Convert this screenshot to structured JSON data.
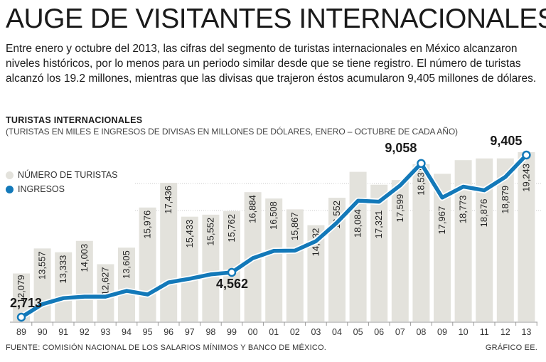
{
  "headline": "AUGE DE VISITANTES INTERNACIONALES",
  "intro": "Entre enero y octubre del 2013, las cifras del segmento de turistas internacionales en México alcanzaron niveles históricos, por lo menos para un periodo similar desde que se tiene registro. El número de turistas alcanzó los 19.2 millones, mientras que las divisas que trajeron éstos acumularon 9,405 millones de dólares.",
  "footer": {
    "source": "FUENTE: COMISIÓN NACIONAL DE LOS SALARIOS MÍNIMOS Y BANCO DE MÉXICO.",
    "credit": "GRÁFICO EE."
  },
  "colors": {
    "bars": "#e3e2dc",
    "line": "#1379b9",
    "text": "#1a1a1a"
  },
  "chart_data": {
    "type": "bar",
    "title": "TURISTAS INTERNACIONALES",
    "subtitle": "(TURISTAS EN MILES E INGRESOS DE DIVISAS EN MILLONES DE DÓLARES, ENERO – OCTUBRE DE CADA AÑO)",
    "categories": [
      "89",
      "90",
      "91",
      "92",
      "93",
      "94",
      "95",
      "96",
      "97",
      "98",
      "99",
      "00",
      "01",
      "02",
      "03",
      "04",
      "05",
      "06",
      "07",
      "08",
      "09",
      "10",
      "11",
      "12",
      "13"
    ],
    "series": [
      {
        "name": "NÚMERO DE TURISTAS",
        "type": "bar",
        "values": [
          12079,
          13557,
          13333,
          14003,
          12627,
          13605,
          15976,
          17436,
          15433,
          15552,
          15762,
          16884,
          16508,
          15867,
          14932,
          16552,
          18084,
          17321,
          17599,
          18531,
          17967,
          18773,
          18876,
          18879,
          19243
        ],
        "labels": [
          "12,079",
          "13,557",
          "13,333",
          "14,003",
          "12,627",
          "13,605",
          "15,976",
          "17,436",
          "15,433",
          "15,552",
          "15,762",
          "16,884",
          "16,508",
          "15,867",
          "14,932",
          "16,552",
          "18,084",
          "17,321",
          "17,599",
          "18,531",
          "17,967",
          "18,773",
          "18,876",
          "18,879",
          "19,243"
        ]
      },
      {
        "name": "INGRESOS",
        "type": "line",
        "values": [
          2713,
          3250,
          3500,
          3560,
          3560,
          3800,
          3650,
          4150,
          4300,
          4480,
          4562,
          5150,
          5450,
          5460,
          5850,
          6620,
          7520,
          7480,
          8150,
          9058,
          7650,
          8100,
          7950,
          8500,
          9405
        ]
      }
    ],
    "callouts": [
      {
        "label": "2,713",
        "index": 0
      },
      {
        "label": "4,562",
        "index": 10
      },
      {
        "label": "9,058",
        "index": 19
      },
      {
        "label": "9,405",
        "index": 24
      }
    ],
    "xlabel": "",
    "ylabel": "",
    "ylim": [
      0,
      20000
    ]
  }
}
